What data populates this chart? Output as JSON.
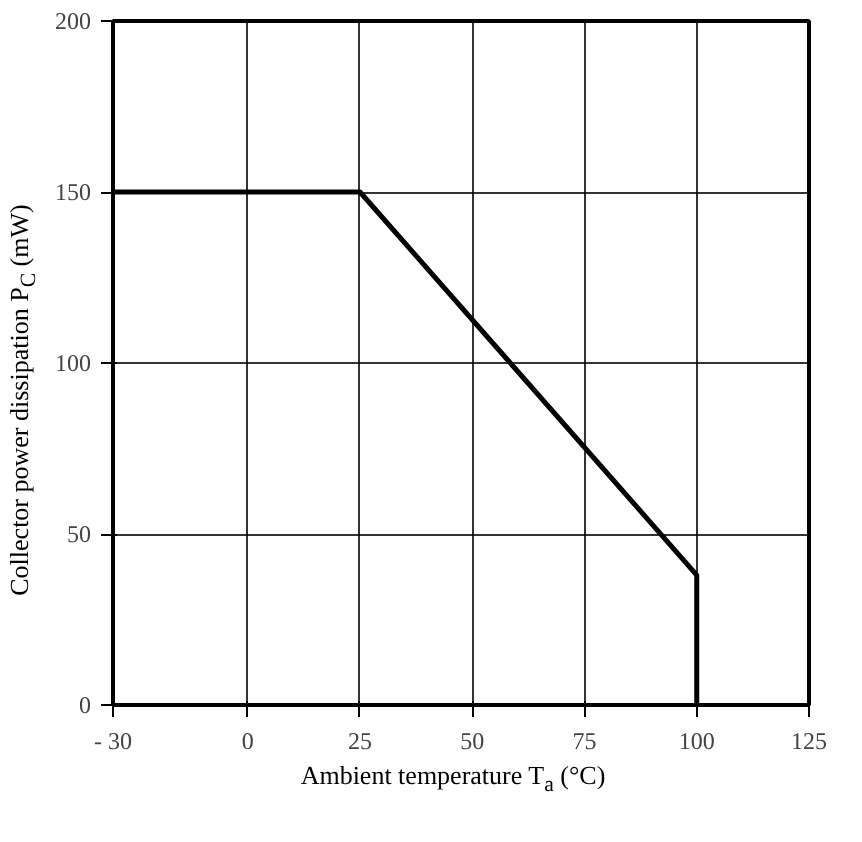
{
  "chart_data": {
    "type": "line",
    "xlabel": "Ambient temperature T$_{a}$ (°C)",
    "ylabel": "Collector power dissipation P$_{C}$ (mW)",
    "x": [
      -30,
      25,
      100,
      100
    ],
    "series": [
      {
        "color": "#000000",
        "values": [
          150,
          150,
          38,
          0
        ]
      }
    ],
    "xlim": [
      -30,
      125
    ],
    "ylim": [
      0,
      200
    ],
    "xticks": [
      {
        "value": -30,
        "label": "- 30"
      },
      0,
      25,
      50,
      75,
      100,
      125
    ],
    "yticks": [
      0,
      50,
      100,
      150,
      200
    ],
    "grid": true,
    "marker": "none",
    "line_style": "solid"
  }
}
